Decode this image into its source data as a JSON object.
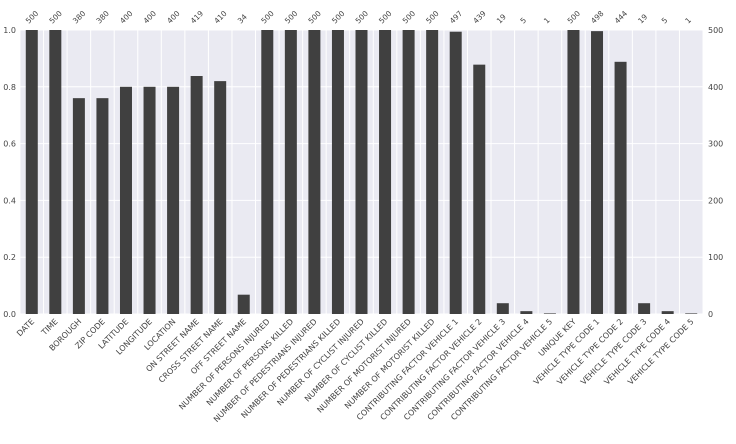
{
  "chart_data": {
    "type": "bar",
    "categories": [
      "DATE",
      "TIME",
      "BOROUGH",
      "ZIP CODE",
      "LATITUDE",
      "LONGITUDE",
      "LOCATION",
      "ON STREET NAME",
      "CROSS STREET NAME",
      "OFF STREET NAME",
      "NUMBER OF PERSONS INJURED",
      "NUMBER OF PERSONS KILLED",
      "NUMBER OF PEDESTRIANS INJURED",
      "NUMBER OF PEDESTRIANS KILLED",
      "NUMBER OF CYCLIST INJURED",
      "NUMBER OF CYCLIST KILLED",
      "NUMBER OF MOTORIST INJURED",
      "NUMBER OF MOTORIST KILLED",
      "CONTRIBUTING FACTOR VEHICLE 1",
      "CONTRIBUTING FACTOR VEHICLE 2",
      "CONTRIBUTING FACTOR VEHICLE 3",
      "CONTRIBUTING FACTOR VEHICLE 4",
      "CONTRIBUTING FACTOR VEHICLE 5",
      "UNIQUE KEY",
      "VEHICLE TYPE CODE 1",
      "VEHICLE TYPE CODE 2",
      "VEHICLE TYPE CODE 3",
      "VEHICLE TYPE CODE 4",
      "VEHICLE TYPE CODE 5"
    ],
    "values": [
      500,
      500,
      380,
      380,
      400,
      400,
      400,
      419,
      410,
      34,
      500,
      500,
      500,
      500,
      500,
      500,
      500,
      500,
      497,
      439,
      19,
      5,
      1,
      500,
      498,
      444,
      19,
      5,
      1
    ],
    "total": 500,
    "ylim": [
      0,
      1.0
    ],
    "y_ticks_left": [
      "0.0",
      "0.2",
      "0.4",
      "0.6",
      "0.8",
      "1.0"
    ],
    "y_ticks_right": [
      "0",
      "100",
      "200",
      "300",
      "400",
      "500"
    ],
    "grid": true,
    "colors": {
      "bar": "#404040",
      "background": "#eaeaf2"
    }
  }
}
